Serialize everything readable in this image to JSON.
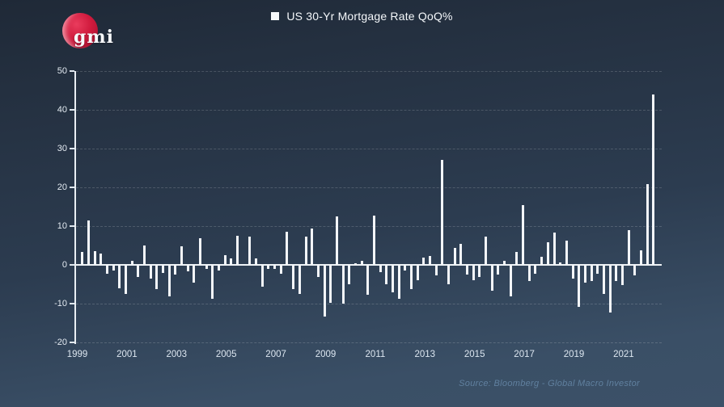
{
  "logo": {
    "text": "gmi",
    "circle_color": "#d01a3d"
  },
  "header": {
    "title": "US 30-Yr Mortgage Rate QoQ%"
  },
  "footer": {
    "source": "Source: Bloomberg - Global Macro Investor"
  },
  "colors": {
    "background_top": "#243040",
    "background_bottom": "#3c5168",
    "bar": "#f3f6fa",
    "axis": "#e9eef3",
    "grid": "rgba(255,255,255,0.17)",
    "tick_label": "#e4ebf2",
    "title": "#f5f8fb",
    "source": "#60809f",
    "logo_red": "#d01a3d"
  },
  "chart_data": {
    "type": "bar",
    "title": "US 30-Yr Mortgage Rate QoQ%",
    "xlabel": "",
    "ylabel": "",
    "ylim": [
      -20,
      50
    ],
    "y_ticks": [
      -20,
      -10,
      0,
      10,
      20,
      30,
      40,
      50
    ],
    "grid": "horizontal dashed",
    "legend_position": "top-center",
    "bar_color": "#f3f6fa",
    "x_tick_labels": [
      "1999",
      "2001",
      "2003",
      "2005",
      "2007",
      "2009",
      "2011",
      "2013",
      "2015",
      "2017",
      "2019",
      "2021"
    ],
    "x_tick_every": 8,
    "x": [
      "1999Q1",
      "1999Q2",
      "1999Q3",
      "1999Q4",
      "2000Q1",
      "2000Q2",
      "2000Q3",
      "2000Q4",
      "2001Q1",
      "2001Q2",
      "2001Q3",
      "2001Q4",
      "2002Q1",
      "2002Q2",
      "2002Q3",
      "2002Q4",
      "2003Q1",
      "2003Q2",
      "2003Q3",
      "2003Q4",
      "2004Q1",
      "2004Q2",
      "2004Q3",
      "2004Q4",
      "2005Q1",
      "2005Q2",
      "2005Q3",
      "2005Q4",
      "2006Q1",
      "2006Q2",
      "2006Q3",
      "2006Q4",
      "2007Q1",
      "2007Q2",
      "2007Q3",
      "2007Q4",
      "2008Q1",
      "2008Q2",
      "2008Q3",
      "2008Q4",
      "2009Q1",
      "2009Q2",
      "2009Q3",
      "2009Q4",
      "2010Q1",
      "2010Q2",
      "2010Q3",
      "2010Q4",
      "2011Q1",
      "2011Q2",
      "2011Q3",
      "2011Q4",
      "2012Q1",
      "2012Q2",
      "2012Q3",
      "2012Q4",
      "2013Q1",
      "2013Q2",
      "2013Q3",
      "2013Q4",
      "2014Q1",
      "2014Q2",
      "2014Q3",
      "2014Q4",
      "2015Q1",
      "2015Q2",
      "2015Q3",
      "2015Q4",
      "2016Q1",
      "2016Q2",
      "2016Q3",
      "2016Q4",
      "2017Q1",
      "2017Q2",
      "2017Q3",
      "2017Q4",
      "2018Q1",
      "2018Q2",
      "2018Q3",
      "2018Q4",
      "2019Q1",
      "2019Q2",
      "2019Q3",
      "2019Q4",
      "2020Q1",
      "2020Q2",
      "2020Q3",
      "2020Q4",
      "2021Q1",
      "2021Q2",
      "2021Q3",
      "2021Q4",
      "2022Q1"
    ],
    "values": [
      3.4,
      11.4,
      3.5,
      3.0,
      -2.3,
      -1.5,
      -6.0,
      -7.5,
      1.0,
      -3.2,
      5.1,
      -3.5,
      -6.3,
      -2.0,
      -8.1,
      -2.5,
      4.7,
      -1.7,
      -4.6,
      6.9,
      -1.1,
      -8.7,
      -1.5,
      2.4,
      1.7,
      7.6,
      0.3,
      7.2,
      1.7,
      -5.6,
      -1.1,
      -1.1,
      -2.2,
      8.5,
      -6.3,
      -7.4,
      7.2,
      9.3,
      -3.2,
      -13.3,
      -9.8,
      12.4,
      -10.1,
      -4.9,
      0.5,
      1.0,
      -7.7,
      12.8,
      -1.8,
      -5.1,
      -7.0,
      -8.7,
      -1.5,
      -6.3,
      -3.9,
      1.8,
      2.2,
      -2.8,
      27.1,
      -4.9,
      4.4,
      5.5,
      -2.5,
      -3.9,
      -3.2,
      7.2,
      -6.7,
      -2.5,
      1.0,
      -8.1,
      3.4,
      15.4,
      -4.2,
      -2.2,
      2.0,
      5.8,
      8.3,
      0.6,
      6.2,
      -3.5,
      -10.8,
      -4.6,
      -4.2,
      -2.2,
      -7.4,
      -12.2,
      -4.2,
      -5.3,
      9.0,
      -2.8,
      3.8,
      20.8,
      44.0
    ]
  }
}
